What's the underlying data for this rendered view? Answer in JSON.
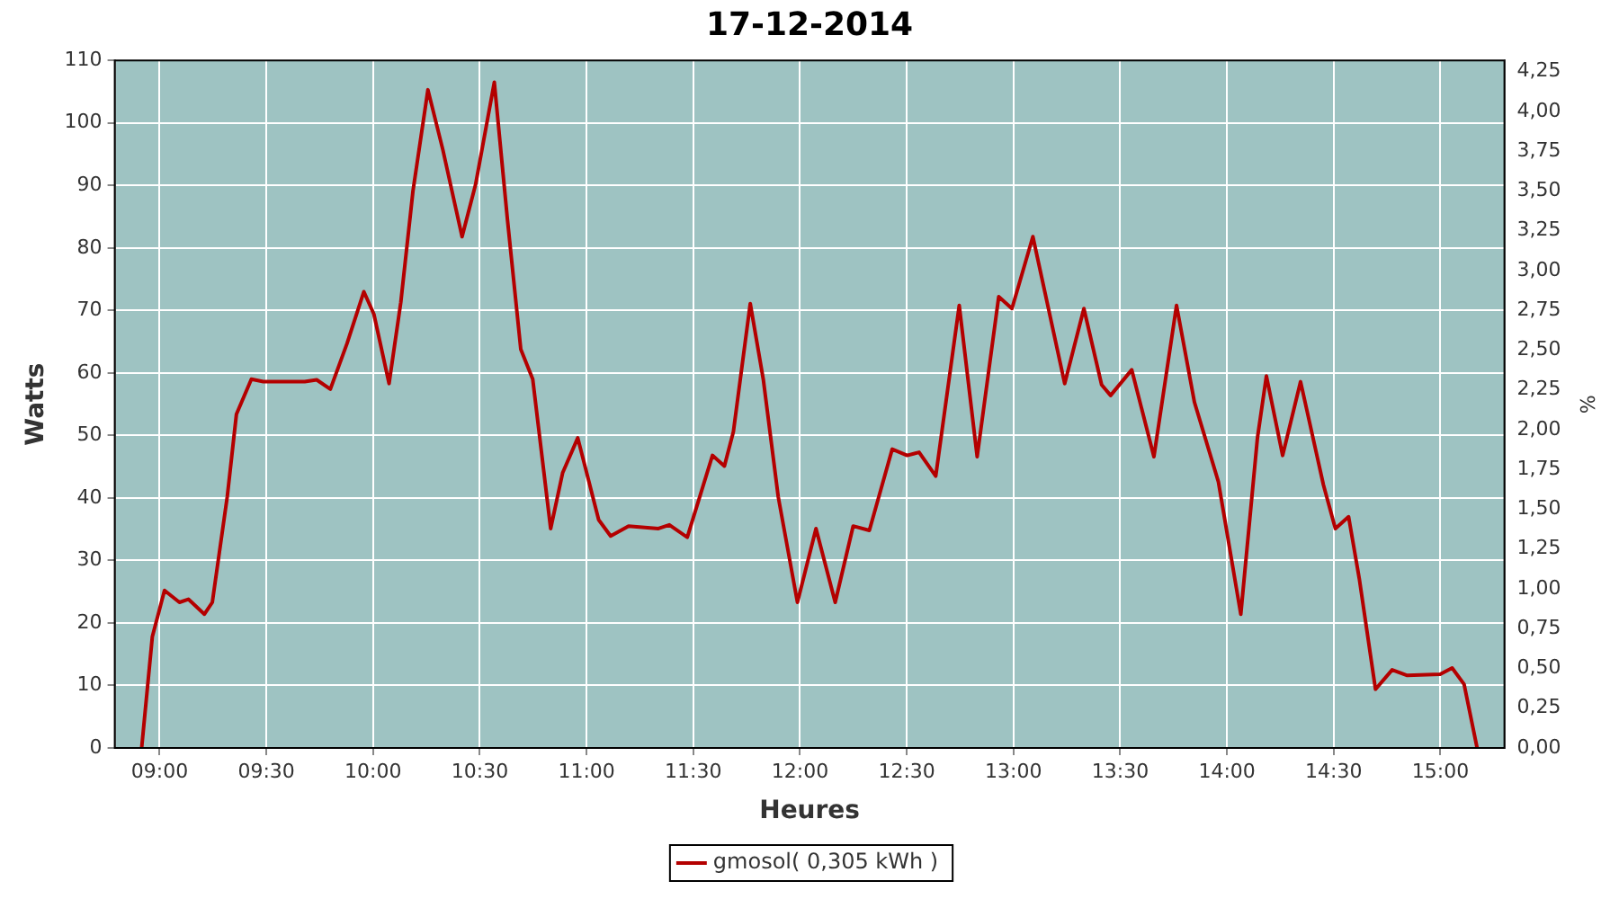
{
  "chart_data": {
    "type": "line",
    "title": "17-12-2014",
    "xlabel": "Heures",
    "ylabel": "Watts",
    "y2label": "%",
    "x": [
      8.916,
      8.966,
      9.023,
      9.093,
      9.135,
      9.21,
      9.247,
      9.317,
      9.36,
      9.43,
      9.486,
      9.68,
      9.736,
      9.8,
      9.878,
      9.957,
      10.004,
      10.075,
      10.13,
      10.187,
      10.257,
      10.327,
      10.417,
      10.48,
      10.568,
      10.63,
      10.692,
      10.748,
      10.832,
      10.888,
      10.959,
      11.057,
      11.113,
      11.197,
      11.337,
      11.388,
      11.472,
      11.59,
      11.646,
      11.688,
      11.767,
      11.828,
      11.898,
      11.988,
      12.075,
      12.165,
      12.249,
      12.325,
      12.432,
      12.502,
      12.558,
      12.636,
      12.746,
      12.83,
      12.931,
      12.993,
      13.091,
      13.24,
      13.33,
      13.413,
      13.455,
      13.554,
      13.658,
      13.764,
      13.848,
      13.96,
      14.065,
      14.143,
      14.185,
      14.261,
      14.345,
      14.452,
      14.508,
      14.57,
      14.62,
      14.696,
      14.774,
      14.845,
      14.999,
      15.055,
      15.111,
      15.172
    ],
    "series": [
      {
        "name": "gmosol( 0,305 kWh )",
        "color": "#b40000",
        "values": [
          0,
          17.8,
          25.2,
          23.3,
          23.8,
          21.4,
          23.3,
          40.2,
          53.4,
          59,
          58.6,
          58.6,
          58.9,
          57.4,
          64.7,
          73,
          69.4,
          58.3,
          71.3,
          89.1,
          105.3,
          95.7,
          81.8,
          90.1,
          106.5,
          84.4,
          63.8,
          59,
          35.1,
          44,
          49.6,
          36.5,
          33.9,
          35.5,
          35.1,
          35.7,
          33.7,
          46.8,
          45.1,
          50.6,
          71.1,
          59,
          40.2,
          23.3,
          35.1,
          23.3,
          35.5,
          34.8,
          47.8,
          46.8,
          47.3,
          43.5,
          70.8,
          46.6,
          72.2,
          70.3,
          81.8,
          58.3,
          70.3,
          58.1,
          56.4,
          60.5,
          46.6,
          70.8,
          55.3,
          42.6,
          21.4,
          49.6,
          59.5,
          46.8,
          58.6,
          42.1,
          35.1,
          37,
          27.1,
          9.4,
          12.5,
          11.6,
          11.8,
          12.8,
          10.2,
          0
        ]
      }
    ],
    "xlim": [
      8.79,
      15.3
    ],
    "xticks": [
      {
        "value": 9,
        "label": "09:00"
      },
      {
        "value": 9.5,
        "label": "09:30"
      },
      {
        "value": 10,
        "label": "10:00"
      },
      {
        "value": 10.5,
        "label": "10:30"
      },
      {
        "value": 11,
        "label": "11:00"
      },
      {
        "value": 11.5,
        "label": "11:30"
      },
      {
        "value": 12,
        "label": "12:00"
      },
      {
        "value": 12.5,
        "label": "12:30"
      },
      {
        "value": 13,
        "label": "13:00"
      },
      {
        "value": 13.5,
        "label": "13:30"
      },
      {
        "value": 14,
        "label": "14:00"
      },
      {
        "value": 14.5,
        "label": "14:30"
      },
      {
        "value": 15,
        "label": "15:00"
      }
    ],
    "ylim": [
      0,
      110
    ],
    "yticks": [
      0,
      10,
      20,
      30,
      40,
      50,
      60,
      70,
      80,
      90,
      100,
      110
    ],
    "y2lim": [
      0,
      4.32
    ],
    "y2ticks": [
      {
        "value": 0,
        "label": "0,00"
      },
      {
        "value": 0.25,
        "label": "0,25"
      },
      {
        "value": 0.5,
        "label": "0,50"
      },
      {
        "value": 0.75,
        "label": "0,75"
      },
      {
        "value": 1,
        "label": "1,00"
      },
      {
        "value": 1.25,
        "label": "1,25"
      },
      {
        "value": 1.5,
        "label": "1,50"
      },
      {
        "value": 1.75,
        "label": "1,75"
      },
      {
        "value": 2,
        "label": "2,00"
      },
      {
        "value": 2.25,
        "label": "2,25"
      },
      {
        "value": 2.5,
        "label": "2,50"
      },
      {
        "value": 2.75,
        "label": "2,75"
      },
      {
        "value": 3,
        "label": "3,00"
      },
      {
        "value": 3.25,
        "label": "3,25"
      },
      {
        "value": 3.5,
        "label": "3,50"
      },
      {
        "value": 3.75,
        "label": "3,75"
      },
      {
        "value": 4,
        "label": "4,00"
      },
      {
        "value": 4.25,
        "label": "4,25"
      }
    ],
    "grid": true,
    "legend": "bottom",
    "marker": "none",
    "line_style": "solid"
  }
}
